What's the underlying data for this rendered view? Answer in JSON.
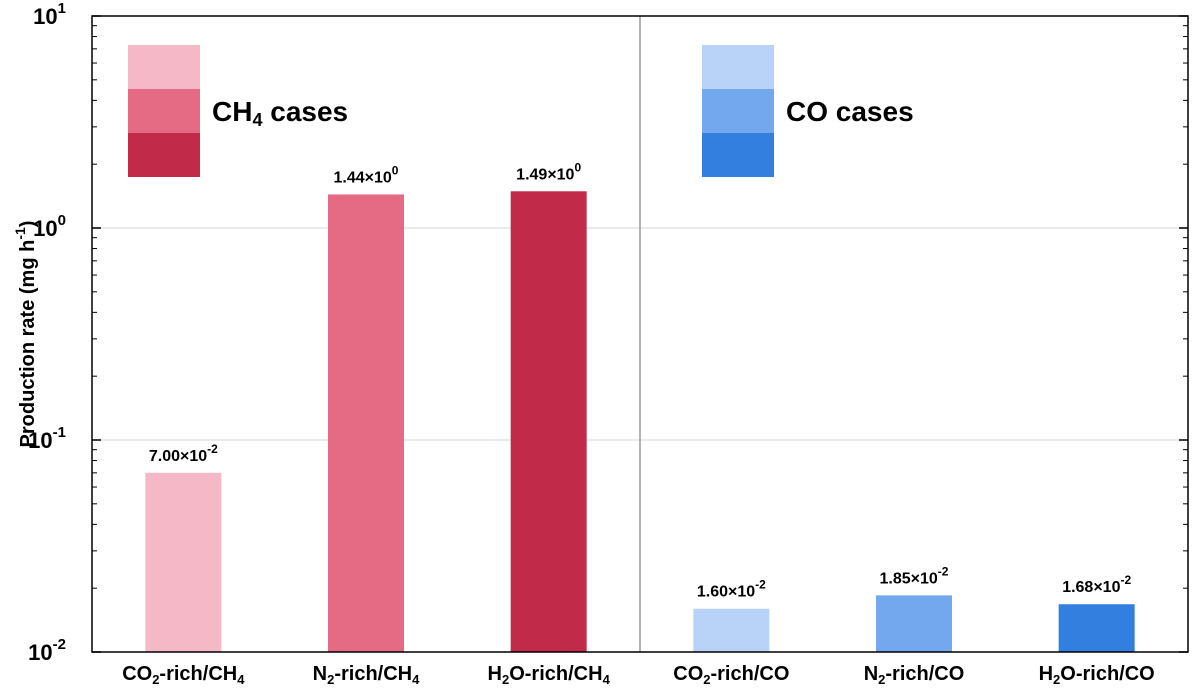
{
  "chart_data": {
    "type": "bar",
    "title": "",
    "xlabel": "",
    "ylabel": "Production rate (mg h",
    "ylabel_sup": "-1",
    "ylabel_close": ")",
    "yscale": "log",
    "ylim": [
      0.01,
      10
    ],
    "yticks": [
      {
        "value": 0.01,
        "base": "10",
        "exp": "-2"
      },
      {
        "value": 0.1,
        "base": "10",
        "exp": "-1"
      },
      {
        "value": 1,
        "base": "10",
        "exp": "0"
      },
      {
        "value": 10,
        "base": "10",
        "exp": "1"
      }
    ],
    "grid": "horizontal",
    "categories": [
      {
        "prefix": "CO",
        "sub": "2",
        "suffix": "-rich/CH",
        "sub2": "4"
      },
      {
        "prefix": "N",
        "sub": "2",
        "suffix": "-rich/CH",
        "sub2": "4"
      },
      {
        "prefix": "H",
        "sub": "2",
        "suffix": "O-rich/CH",
        "sub2": "4"
      },
      {
        "prefix": "CO",
        "sub": "2",
        "suffix": "-rich/CO",
        "sub2": ""
      },
      {
        "prefix": "N",
        "sub": "2",
        "suffix": "-rich/CO",
        "sub2": ""
      },
      {
        "prefix": "H",
        "sub": "2",
        "suffix": "O-rich/CO",
        "sub2": ""
      }
    ],
    "values": [
      0.07,
      1.44,
      1.49,
      0.016,
      0.0185,
      0.0168
    ],
    "data_labels": [
      {
        "mant": "7.00",
        "exp": "-2"
      },
      {
        "mant": "1.44",
        "exp": "0"
      },
      {
        "mant": "1.49",
        "exp": "0"
      },
      {
        "mant": "1.60",
        "exp": "-2"
      },
      {
        "mant": "1.85",
        "exp": "-2"
      },
      {
        "mant": "1.68",
        "exp": "-2"
      }
    ],
    "colors": [
      "#f4b8c6",
      "#e56a84",
      "#c22a4a",
      "#b8d3f7",
      "#73a8ee",
      "#327fdf"
    ],
    "legends": [
      {
        "text_main": "CH",
        "text_sub": "4",
        "text_tail": " cases",
        "swatches": [
          "#f4b8c6",
          "#e56a84",
          "#c22a4a"
        ]
      },
      {
        "text_main": "CO cases",
        "text_sub": "",
        "text_tail": "",
        "swatches": [
          "#b8d3f7",
          "#73a8ee",
          "#327fdf"
        ]
      }
    ],
    "times_symbol": "×"
  }
}
